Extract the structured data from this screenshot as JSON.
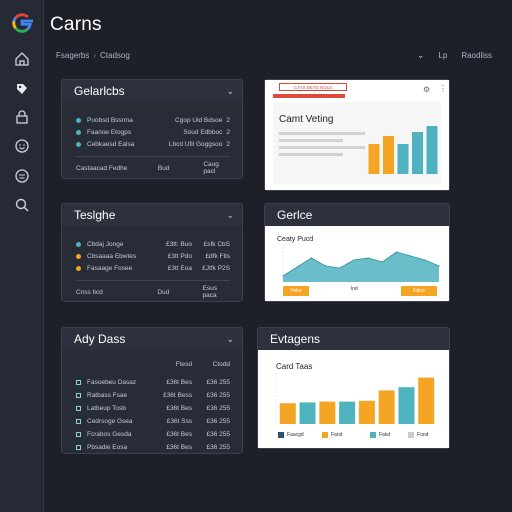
{
  "app": {
    "title": "Carns"
  },
  "breadcrumb": [
    "Fsagerbs",
    "Ctadsog"
  ],
  "top_right": {
    "item1": "Lp",
    "item2": "Raodliss"
  },
  "sidebar": {
    "items": [
      {
        "icon": "home-icon"
      },
      {
        "icon": "tag-icon"
      },
      {
        "icon": "lock-icon"
      },
      {
        "icon": "smiley-icon"
      },
      {
        "icon": "face-icon"
      },
      {
        "icon": "search-icon"
      }
    ]
  },
  "panels": {
    "p1": {
      "title": "Gelarlcbs",
      "rows": [
        {
          "a": "Puobsd Bssrma",
          "b": "Cgop Uid Bdsoe",
          "c": "2",
          "color": "#4fb3bf"
        },
        {
          "a": "Faanoe Etogps",
          "b": "Soud Edbboc",
          "c": "2",
          "color": "#4fb3bf"
        },
        {
          "a": "Cebkaesd Ealsa",
          "b": "Lbcd Ufil Goggsoo",
          "c": "2",
          "color": "#4fb3bf"
        }
      ],
      "footer": [
        "Castaacad Fedhe",
        "Bud",
        "Caug pacl"
      ]
    },
    "p2": {
      "title": "Teslghe",
      "rows": [
        {
          "a": "Cbdaj Jonge",
          "b": "£3tt: Buo",
          "c": "£sfk CbS",
          "color": "#4fb3bf"
        },
        {
          "a": "Cbsaaaa Ebwtes",
          "b": "£3tt Pdo",
          "c": "£dfk Ftls",
          "color": "#f5a524"
        },
        {
          "a": "Fasaage Fosee",
          "b": "£3tt Eoa",
          "c": "£Jtfk P2S",
          "color": "#f5a524"
        }
      ],
      "footer": [
        "Cnss ticd",
        "Dud",
        "Esus paca"
      ]
    },
    "p3": {
      "title": "Ady Dass",
      "head": [
        "",
        "Ftesd",
        "Ctodd"
      ],
      "rows": [
        {
          "a": "Fasoebeu Dasaz",
          "b": "£36t Bes",
          "c": "£36 255"
        },
        {
          "a": "Ratbass Fsae",
          "b": "£36t Bess",
          "c": "£36 255"
        },
        {
          "a": "Latbeup Tosb",
          "b": "£36t Bes",
          "c": "£36 255"
        },
        {
          "a": "Cedrsoge Gsea",
          "b": "£36t Sss",
          "c": "£36 255"
        },
        {
          "a": "Fcrabos Gesda",
          "b": "£36t Bes",
          "c": "£36 255"
        },
        {
          "a": "Pbsadie Eosa",
          "b": "£36t Bes",
          "c": "£36 255"
        }
      ]
    }
  },
  "cards": {
    "c1": {
      "badge": "CATS DETS NOLE",
      "subtitle": "Camt Veting",
      "colors": {
        "teal": "#4fb3bf",
        "orange": "#f5a524",
        "gray": "#c9ccd2"
      }
    },
    "c2": {
      "title": "Gerlce",
      "subtitle": "Ceaty Pucd",
      "btn_left": "Fnko",
      "btn_mid": "lnd",
      "btn_right": "Fdno"
    },
    "c3": {
      "title": "Evtagens",
      "subtitle": "Card Taas",
      "legend": [
        "Faacgd",
        "Fand",
        "Fakd",
        "Fund"
      ]
    }
  },
  "chart_data": [
    {
      "type": "bar",
      "subtitle": "Camt Veting",
      "values": [
        30,
        38,
        30,
        42,
        48
      ],
      "colors": [
        "#f5a524",
        "#f5a524",
        "#4fb3bf",
        "#4fb3bf",
        "#4fb3bf"
      ],
      "ylim": [
        0,
        60
      ]
    },
    {
      "type": "area",
      "subtitle": "Ceaty Pucd",
      "values": [
        6,
        15,
        24,
        16,
        14,
        22,
        24,
        20,
        30,
        26,
        22,
        16
      ],
      "ylim": [
        0,
        40
      ]
    },
    {
      "type": "bar",
      "subtitle": "Card Taas",
      "values": [
        26,
        27,
        28,
        28,
        29,
        42,
        46,
        58
      ],
      "colors": [
        "#f5a524",
        "#4fb3bf",
        "#f5a524",
        "#4fb3bf",
        "#f5a524",
        "#f5a524",
        "#4fb3bf",
        "#f5a524"
      ],
      "ylim": [
        0,
        65
      ]
    }
  ]
}
